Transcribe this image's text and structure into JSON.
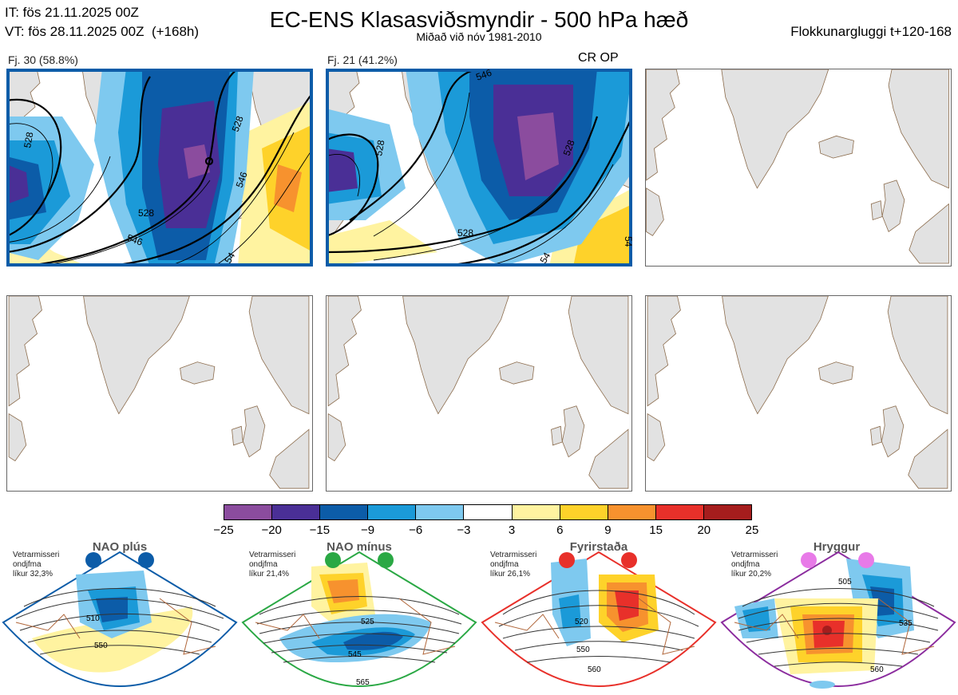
{
  "header": {
    "initial_time": "IT: fös 21.11.2025 00Z",
    "valid_time": "VT: fös 28.11.2025 00Z  (+168h)",
    "title": "EC-ENS Klasasviðsmyndir - 500 hPa hæð",
    "subtitle": "Miðað við nóv 1981-2010",
    "window": "Flokkunargluggi t+120-168"
  },
  "panels": [
    {
      "label": "Fj. 30 (58.8%)",
      "filled": true,
      "highlight": true
    },
    {
      "label": "Fj. 21 (41.2%)",
      "filled": true,
      "highlight": true,
      "tag": "CR OP"
    },
    {
      "label": "",
      "filled": false
    },
    {
      "label": "",
      "filled": false
    },
    {
      "label": "",
      "filled": false
    },
    {
      "label": "",
      "filled": false
    }
  ],
  "contours_panel1": [
    "528",
    "546",
    "528",
    "546",
    "528",
    "54"
  ],
  "contours_panel2": [
    "528",
    "546",
    "528",
    "528",
    "54",
    "54"
  ],
  "colorbar": {
    "ticks": [
      "−25",
      "−20",
      "−15",
      "−9",
      "−6",
      "−3",
      "3",
      "6",
      "9",
      "15",
      "20",
      "25"
    ],
    "colors": [
      "#8b4c9e",
      "#4a2f96",
      "#0c5ca8",
      "#1b9ad8",
      "#7ec9ef",
      "#ffffff",
      "#fff3a0",
      "#fed22a",
      "#f7922e",
      "#e8302a",
      "#a51d1d"
    ]
  },
  "regimes": [
    {
      "name": "NAO plús",
      "note": [
        "Vetrarmisseri",
        "ondjfma",
        "líkur 32,3%"
      ],
      "color": "#0c5ca8",
      "labels": [
        "510",
        "550"
      ]
    },
    {
      "name": "NAO mínus",
      "note": [
        "Vetrarmisseri",
        "ondjfma",
        "líkur 21,4%"
      ],
      "color": "#2aa844",
      "labels": [
        "525",
        "545",
        "565"
      ]
    },
    {
      "name": "Fyrirstaða",
      "note": [
        "Vetrarmisseri",
        "ondjfma",
        "líkur 26,1%"
      ],
      "color": "#e8302a",
      "labels": [
        "520",
        "550",
        "560"
      ]
    },
    {
      "name": "Hryggur",
      "note": [
        "Vetrarmisseri",
        "ondjfma",
        "líkur 20,2%"
      ],
      "color": "#e87ae8",
      "labels": [
        "505",
        "535",
        "560"
      ]
    }
  ]
}
